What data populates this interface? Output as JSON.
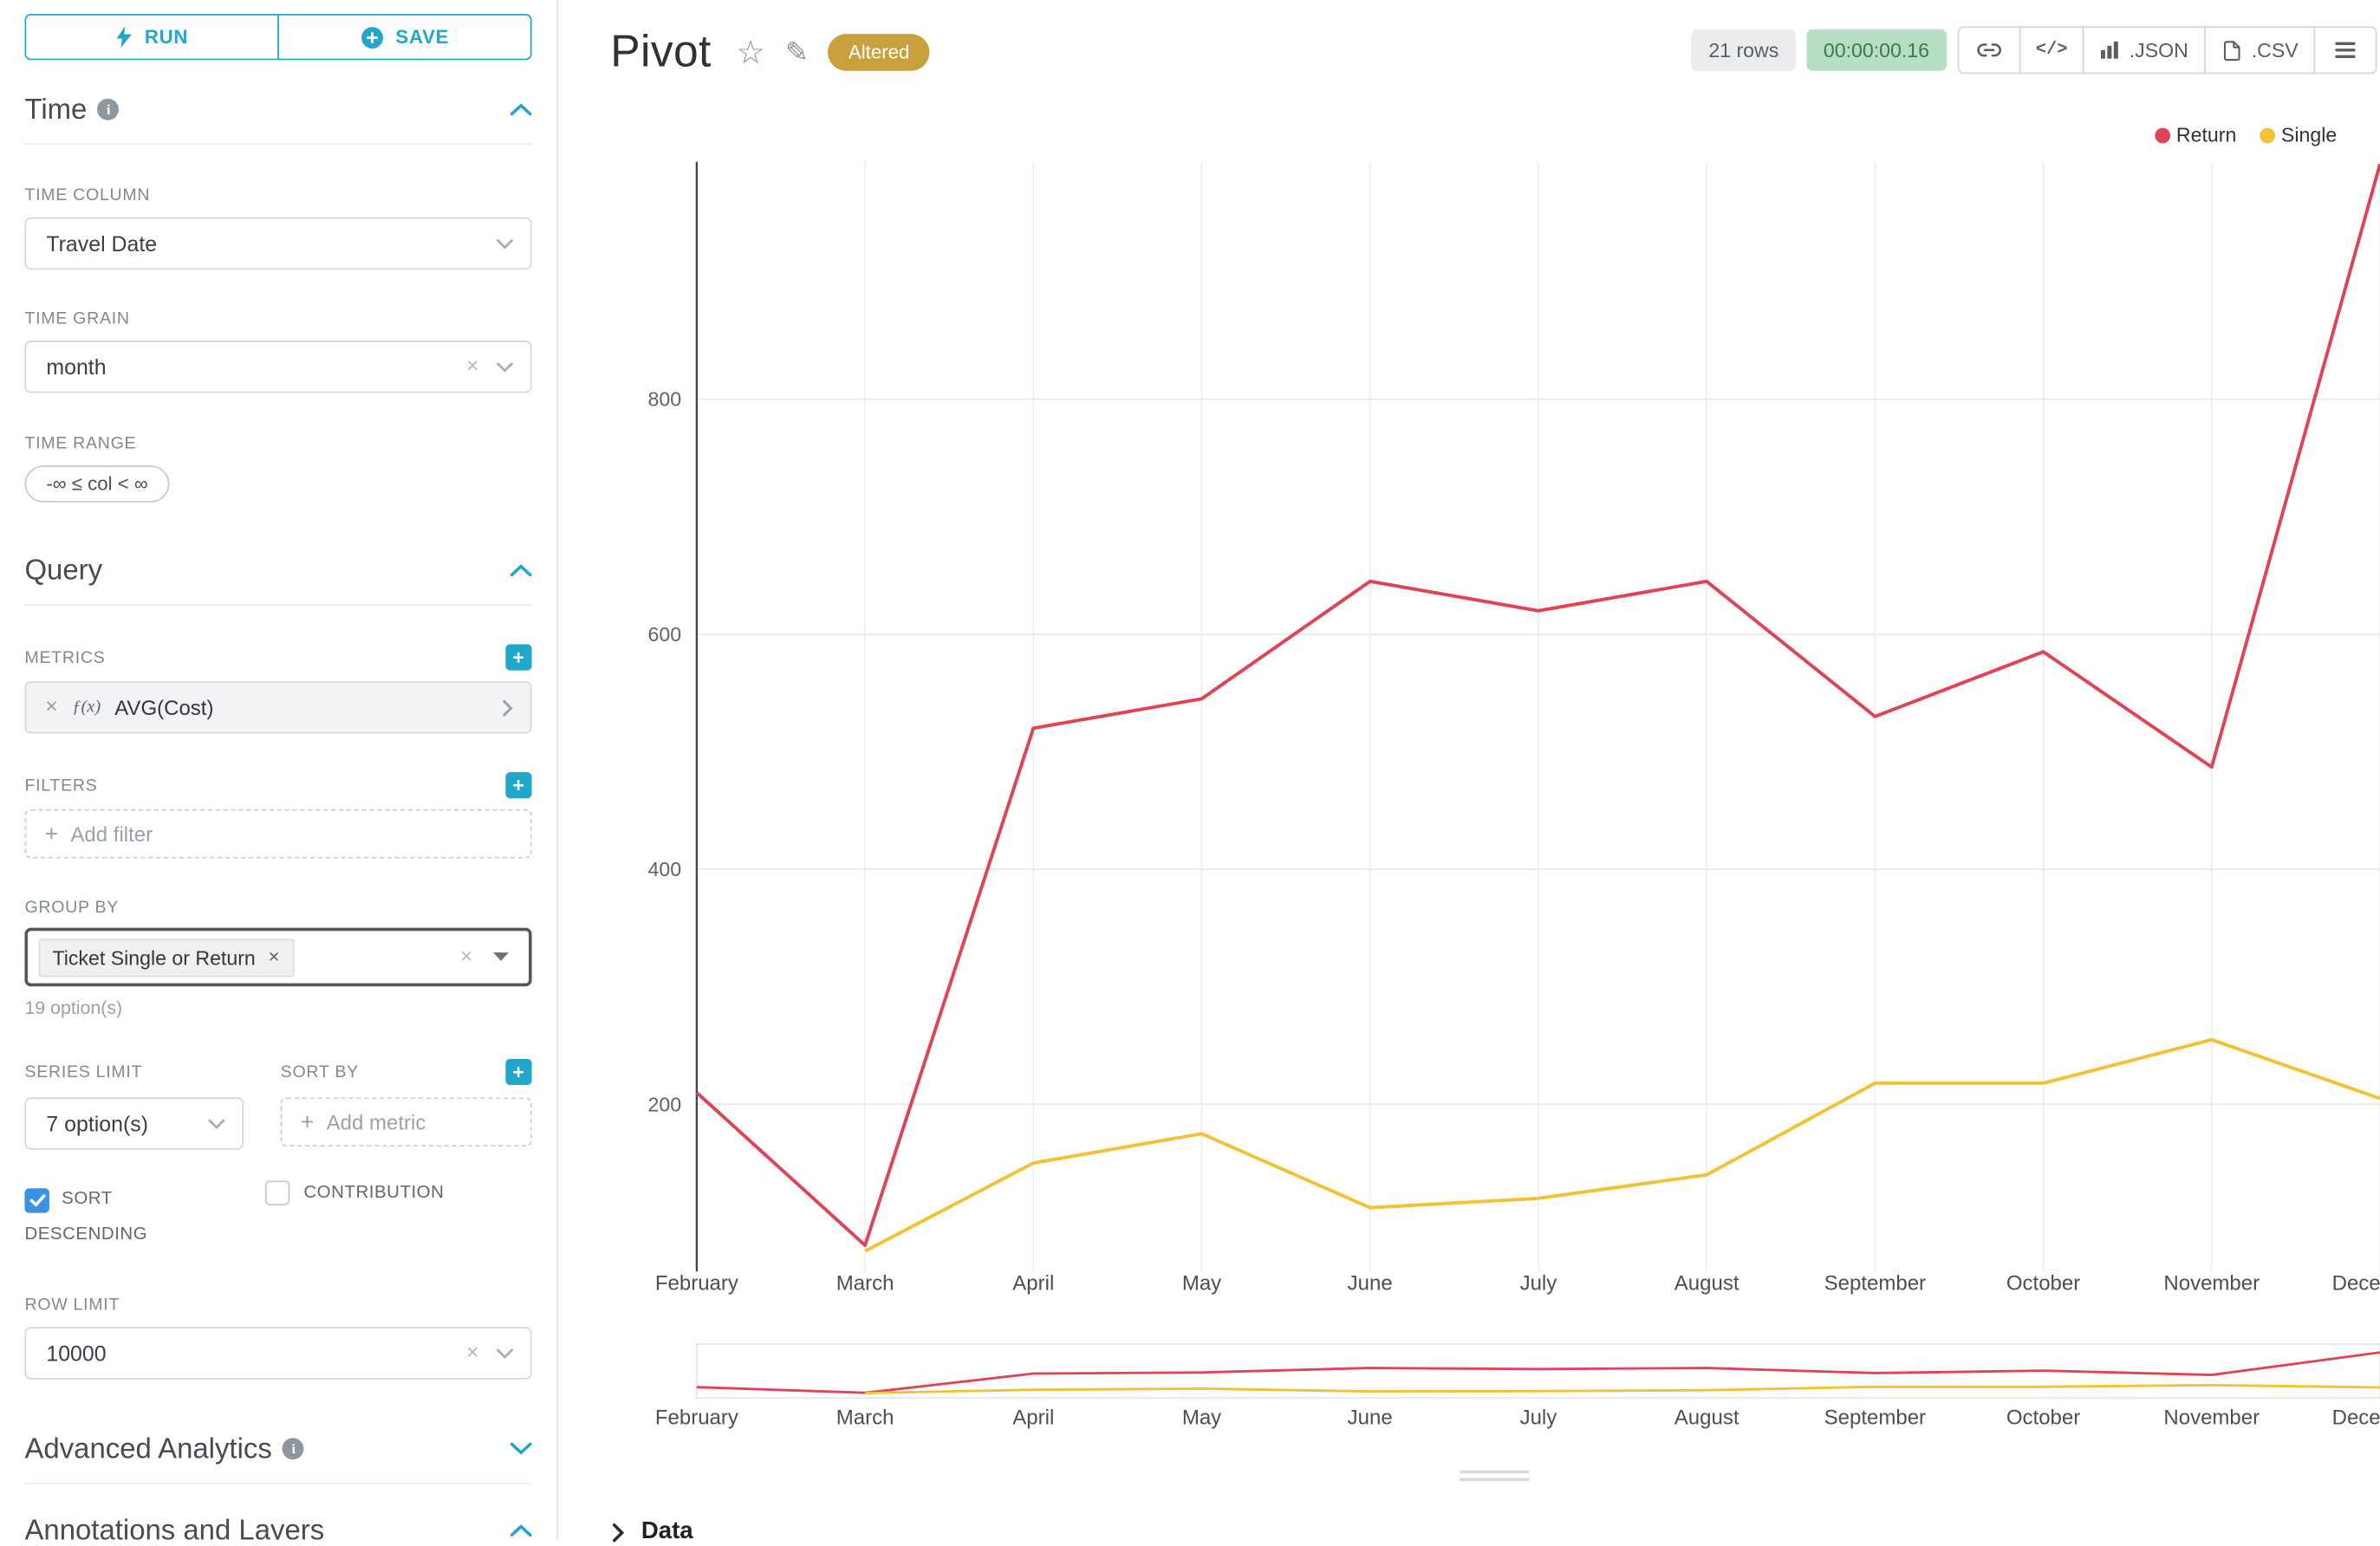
{
  "colors": {
    "primary": "#20A7C9",
    "return_line": "#E04355",
    "single_line": "#F2C234",
    "altered_badge_bg": "#C9A13B",
    "timer_bg": "#B5DEC2",
    "timer_text": "#3C7A4C",
    "checkbox_checked": "#3A92E0"
  },
  "sidebar": {
    "run_label": "RUN",
    "save_label": "SAVE",
    "time_section": {
      "title": "Time",
      "time_column_label": "TIME COLUMN",
      "time_column_value": "Travel Date",
      "time_grain_label": "TIME GRAIN",
      "time_grain_value": "month",
      "time_range_label": "TIME RANGE",
      "time_range_value": "-∞ ≤ col < ∞"
    },
    "query_section": {
      "title": "Query",
      "metrics_label": "METRICS",
      "metric_fx": "ƒ(x)",
      "metric_value": "AVG(Cost)",
      "filters_label": "FILTERS",
      "add_filter_placeholder": "Add filter",
      "group_by_label": "GROUP BY",
      "group_by_tag": "Ticket Single or Return",
      "group_by_hint": "19 option(s)",
      "series_limit_label": "SERIES LIMIT",
      "series_limit_value": "7 option(s)",
      "sort_by_label": "SORT BY",
      "add_metric_placeholder": "Add metric",
      "sort_descending_label": "SORT DESCENDING",
      "sort_descending_checked": true,
      "contribution_label": "CONTRIBUTION",
      "contribution_checked": false,
      "row_limit_label": "ROW LIMIT",
      "row_limit_value": "10000"
    },
    "advanced_analytics_title": "Advanced Analytics",
    "annotations_title": "Annotations and Layers"
  },
  "header": {
    "title": "Pivot",
    "altered_badge": "Altered",
    "rows_badge": "21 rows",
    "timer": "00:00:00.16",
    "code_icon_label": "</>",
    "export_json_label": ".JSON",
    "export_csv_label": ".CSV"
  },
  "chart_data": {
    "type": "line",
    "title": "",
    "x": [
      "February",
      "March",
      "April",
      "May",
      "June",
      "July",
      "August",
      "September",
      "October",
      "November",
      "December"
    ],
    "series": [
      {
        "name": "Return",
        "color": "#E04355",
        "values": [
          210,
          80,
          520,
          545,
          645,
          620,
          645,
          530,
          585,
          487,
          1000
        ]
      },
      {
        "name": "Single",
        "color": "#F2C234",
        "values": [
          null,
          75,
          150,
          175,
          112,
          120,
          140,
          218,
          218,
          255,
          205
        ]
      }
    ],
    "yticks": [
      200,
      400,
      600,
      800
    ],
    "ylim": [
      0,
      1000
    ],
    "grid": true,
    "legend_position": "top-right",
    "has_range_selector": true
  },
  "data_panel_label": "Data"
}
